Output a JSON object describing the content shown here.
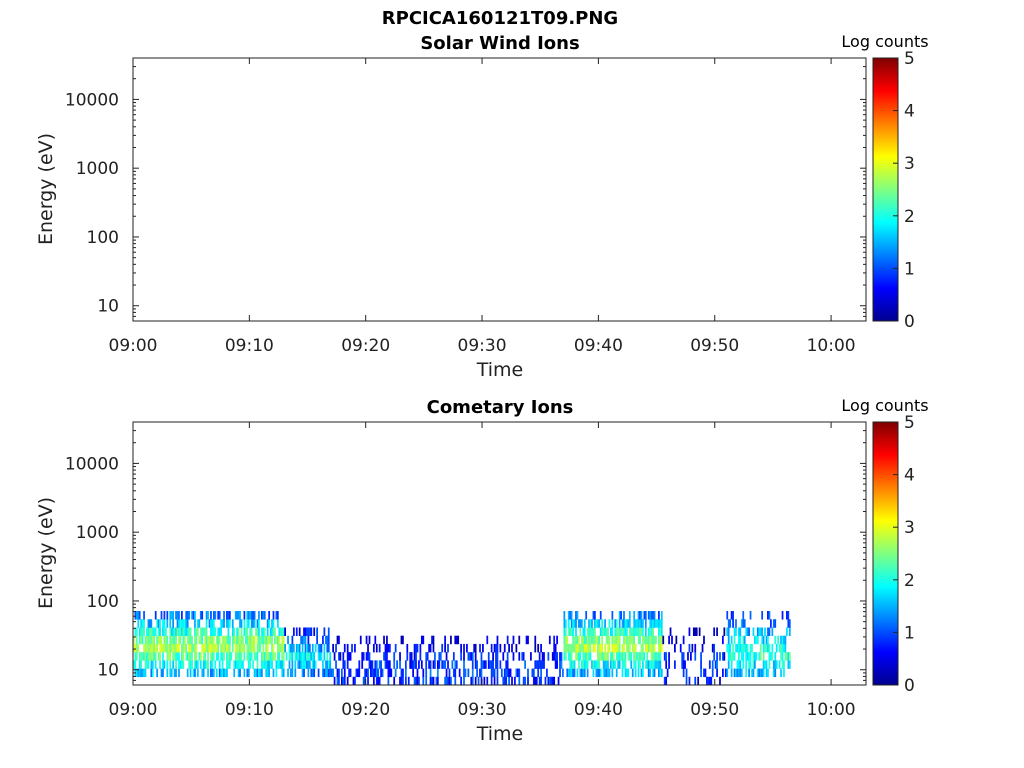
{
  "figure": {
    "title": "RPCICA160121T09.PNG"
  },
  "colormap": [
    "#00008f",
    "#0000ff",
    "#0080ff",
    "#00ffff",
    "#80ff80",
    "#ffff00",
    "#ff8000",
    "#ff0000",
    "#800000"
  ],
  "chart_data": [
    {
      "type": "heatmap",
      "title": "Solar Wind Ions",
      "xlabel": "Time",
      "ylabel": "Energy (eV)",
      "yscale": "log",
      "xlim": [
        "09:00",
        "10:03"
      ],
      "ylim": [
        6,
        40000
      ],
      "x_ticks": [
        "09:00",
        "09:10",
        "09:20",
        "09:30",
        "09:40",
        "09:50",
        "10:00"
      ],
      "y_ticks": [
        "10",
        "100",
        "1000",
        "10000"
      ],
      "colorbar": {
        "label": "Log counts",
        "min": 0,
        "max": 5,
        "ticks": [
          "0",
          "1",
          "2",
          "3",
          "4",
          "5"
        ]
      },
      "segments": []
    },
    {
      "type": "heatmap",
      "title": "Cometary Ions",
      "xlabel": "Time",
      "ylabel": "Energy (eV)",
      "yscale": "log",
      "xlim": [
        "09:00",
        "10:03"
      ],
      "ylim": [
        6,
        40000
      ],
      "x_ticks": [
        "09:00",
        "09:10",
        "09:20",
        "09:30",
        "09:40",
        "09:50",
        "10:00"
      ],
      "y_ticks": [
        "10",
        "100",
        "1000",
        "10000"
      ],
      "colorbar": {
        "label": "Log counts",
        "min": 0,
        "max": 5,
        "ticks": [
          "0",
          "1",
          "2",
          "3",
          "4",
          "5"
        ]
      },
      "segments": [
        {
          "start": "09:00",
          "end": "09:13",
          "e_low": 9,
          "e_high": 80,
          "peak_e": 22,
          "peak_level": 2.8,
          "density": 0.85
        },
        {
          "start": "09:13",
          "end": "09:17",
          "e_low": 7,
          "e_high": 40,
          "peak_e": 15,
          "peak_level": 1.9,
          "density": 0.75
        },
        {
          "start": "09:17",
          "end": "09:37",
          "e_low": 6,
          "e_high": 30,
          "peak_e": 10,
          "peak_level": 1.0,
          "density": 0.5
        },
        {
          "start": "09:37",
          "end": "09:45.5",
          "e_low": 8,
          "e_high": 80,
          "peak_e": 22,
          "peak_level": 2.8,
          "density": 0.85
        },
        {
          "start": "09:45.5",
          "end": "09:51",
          "e_low": 6,
          "e_high": 40,
          "peak_e": 12,
          "peak_level": 0.9,
          "density": 0.25
        },
        {
          "start": "09:51",
          "end": "09:56.5",
          "e_low": 8,
          "e_high": 80,
          "peak_e": 18,
          "peak_level": 2.2,
          "density": 0.6
        }
      ]
    }
  ]
}
